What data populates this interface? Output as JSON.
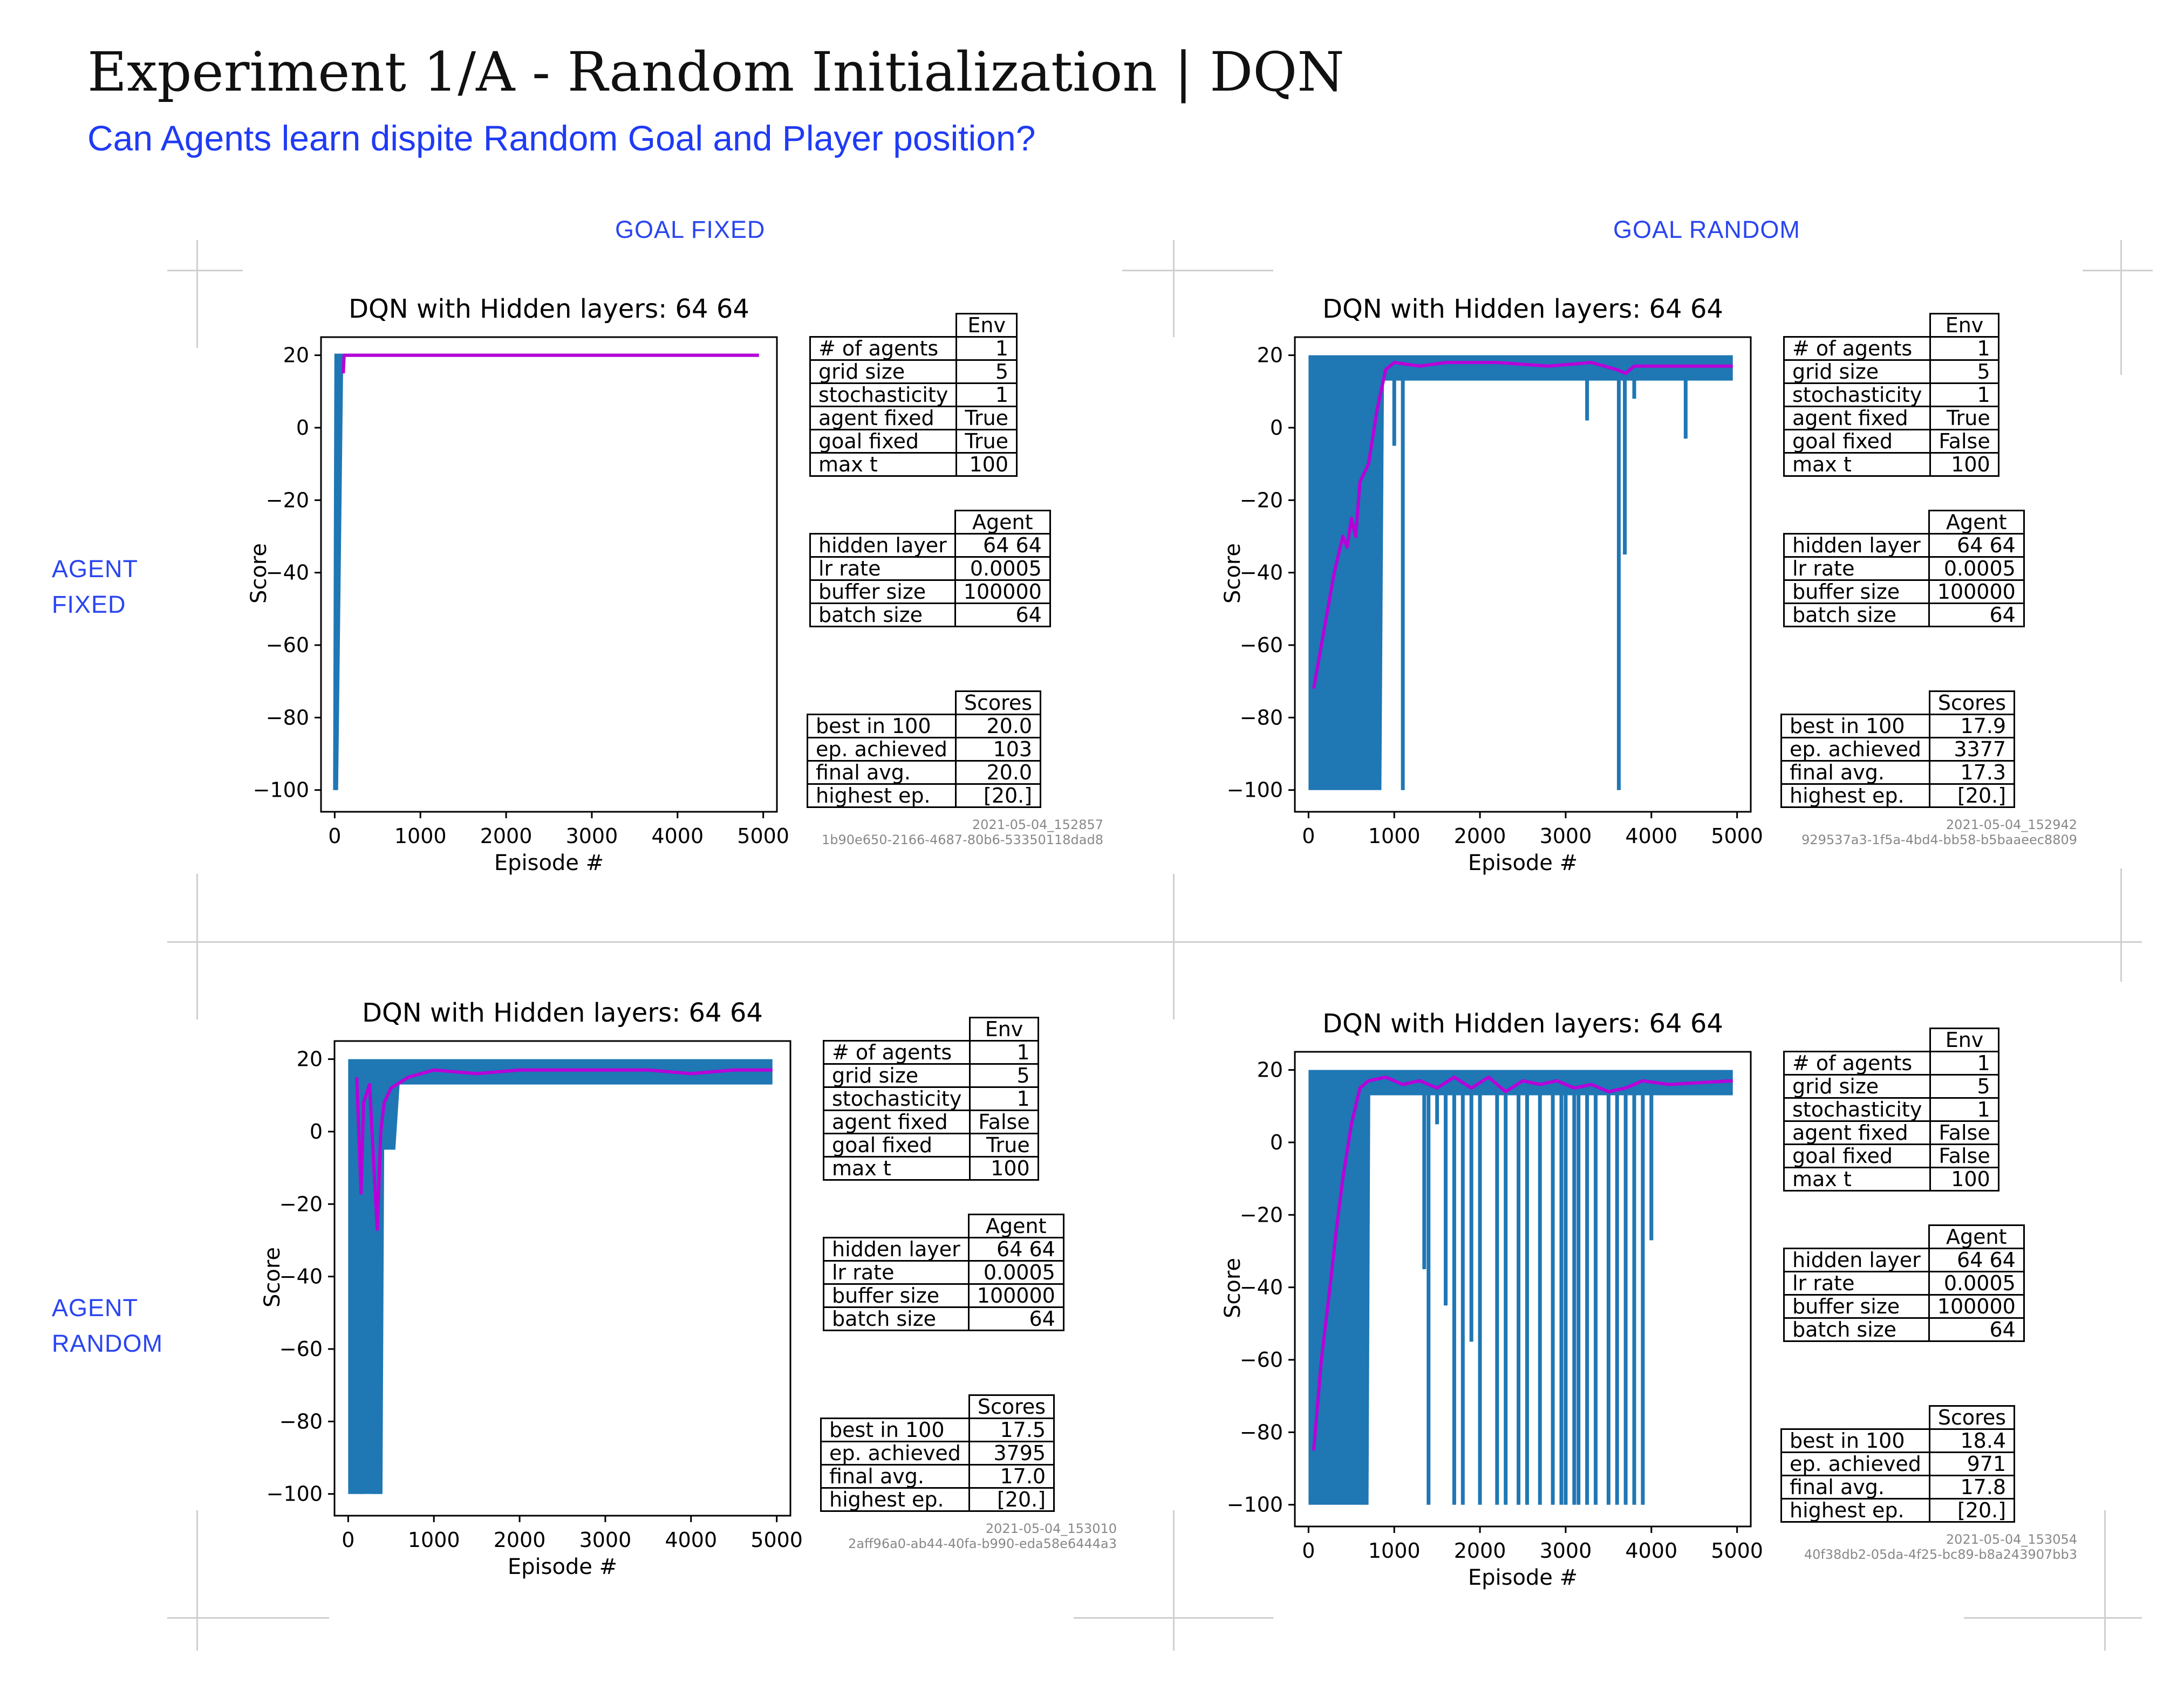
{
  "page": {
    "title": "Experiment 1/A - Random Initialization | DQN",
    "subtitle": "Can Agents learn dispite Random Goal and Player position?",
    "col_headers": [
      "GOAL FIXED",
      "GOAL RANDOM"
    ],
    "row_headers": [
      "AGENT\nFIXED",
      "AGENT\nRANDOM"
    ]
  },
  "colors": {
    "raw": "#1f77b4",
    "avg": "#b700d9",
    "heading": "#1f3bf5"
  },
  "panels": [
    {
      "title": "DQN with Hidden layers: 64 64",
      "ylabel": "Score",
      "xlabel": "Episode #",
      "env": {
        "header": "Env",
        "rows": [
          [
            "# of agents",
            "1"
          ],
          [
            "grid size",
            "5"
          ],
          [
            "stochasticity",
            "1"
          ],
          [
            "agent fixed",
            "True"
          ],
          [
            "goal fixed",
            "True"
          ],
          [
            "max t",
            "100"
          ]
        ]
      },
      "agent": {
        "header": "Agent",
        "rows": [
          [
            "hidden layer",
            "64 64"
          ],
          [
            "lr rate",
            "0.0005"
          ],
          [
            "buffer size",
            "100000"
          ],
          [
            "batch size",
            "64"
          ]
        ]
      },
      "scores": {
        "header": "Scores",
        "rows": [
          [
            "best in 100",
            "20.0"
          ],
          [
            "ep. achieved",
            "103"
          ],
          [
            "final avg.",
            "20.0"
          ],
          [
            "highest ep.",
            "[20.]"
          ]
        ]
      },
      "stamp": [
        "2021-05-04_152857",
        "1b90e650-2166-4687-80b6-53350118dad8"
      ]
    },
    {
      "title": "DQN with Hidden layers: 64 64",
      "ylabel": "Score",
      "xlabel": "Episode #",
      "env": {
        "header": "Env",
        "rows": [
          [
            "# of agents",
            "1"
          ],
          [
            "grid size",
            "5"
          ],
          [
            "stochasticity",
            "1"
          ],
          [
            "agent fixed",
            "True"
          ],
          [
            "goal fixed",
            "False"
          ],
          [
            "max t",
            "100"
          ]
        ]
      },
      "agent": {
        "header": "Agent",
        "rows": [
          [
            "hidden layer",
            "64 64"
          ],
          [
            "lr rate",
            "0.0005"
          ],
          [
            "buffer size",
            "100000"
          ],
          [
            "batch size",
            "64"
          ]
        ]
      },
      "scores": {
        "header": "Scores",
        "rows": [
          [
            "best in 100",
            "17.9"
          ],
          [
            "ep. achieved",
            "3377"
          ],
          [
            "final avg.",
            "17.3"
          ],
          [
            "highest ep.",
            "[20.]"
          ]
        ]
      },
      "stamp": [
        "2021-05-04_152942",
        "929537a3-1f5a-4bd4-bb58-b5baaeec8809"
      ]
    },
    {
      "title": "DQN with Hidden layers: 64 64",
      "ylabel": "Score",
      "xlabel": "Episode #",
      "env": {
        "header": "Env",
        "rows": [
          [
            "# of agents",
            "1"
          ],
          [
            "grid size",
            "5"
          ],
          [
            "stochasticity",
            "1"
          ],
          [
            "agent fixed",
            "False"
          ],
          [
            "goal fixed",
            "True"
          ],
          [
            "max t",
            "100"
          ]
        ]
      },
      "agent": {
        "header": "Agent",
        "rows": [
          [
            "hidden layer",
            "64 64"
          ],
          [
            "lr rate",
            "0.0005"
          ],
          [
            "buffer size",
            "100000"
          ],
          [
            "batch size",
            "64"
          ]
        ]
      },
      "scores": {
        "header": "Scores",
        "rows": [
          [
            "best in 100",
            "17.5"
          ],
          [
            "ep. achieved",
            "3795"
          ],
          [
            "final avg.",
            "17.0"
          ],
          [
            "highest ep.",
            "[20.]"
          ]
        ]
      },
      "stamp": [
        "2021-05-04_153010",
        "2aff96a0-ab44-40fa-b990-eda58e6444a3"
      ]
    },
    {
      "title": "DQN with Hidden layers: 64 64",
      "ylabel": "Score",
      "xlabel": "Episode #",
      "env": {
        "header": "Env",
        "rows": [
          [
            "# of agents",
            "1"
          ],
          [
            "grid size",
            "5"
          ],
          [
            "stochasticity",
            "1"
          ],
          [
            "agent fixed",
            "False"
          ],
          [
            "goal fixed",
            "False"
          ],
          [
            "max t",
            "100"
          ]
        ]
      },
      "agent": {
        "header": "Agent",
        "rows": [
          [
            "hidden layer",
            "64 64"
          ],
          [
            "lr rate",
            "0.0005"
          ],
          [
            "buffer size",
            "100000"
          ],
          [
            "batch size",
            "64"
          ]
        ]
      },
      "scores": {
        "header": "Scores",
        "rows": [
          [
            "best in 100",
            "18.4"
          ],
          [
            "ep. achieved",
            "971"
          ],
          [
            "final avg.",
            "17.8"
          ],
          [
            "highest ep.",
            "[20.]"
          ]
        ]
      },
      "stamp": [
        "2021-05-04_153054",
        "40f38db2-05da-4f25-bc89-b8a243907bb3"
      ]
    }
  ],
  "chart_data": [
    {
      "type": "line",
      "xlim": [
        0,
        5000
      ],
      "ylim": [
        -100,
        20
      ],
      "xticks": [
        0,
        1000,
        2000,
        3000,
        4000,
        5000
      ],
      "yticks": [
        20,
        0,
        -20,
        -40,
        -60,
        -80,
        -100
      ],
      "series": [
        {
          "band": [
            [
              0,
              -100,
              20
            ],
            [
              40,
              -100,
              20
            ],
            [
              100,
              20,
              20
            ],
            [
              4950,
              20,
              20
            ]
          ],
          "values": [
            [
              0,
              -100
            ],
            [
              15,
              20
            ],
            [
              4950,
              20
            ]
          ]
        },
        {
          "values": [
            [
              100,
              15
            ],
            [
              110,
              20
            ],
            [
              4950,
              20
            ]
          ]
        }
      ]
    },
    {
      "type": "line",
      "xlim": [
        0,
        5000
      ],
      "ylim": [
        -100,
        20
      ],
      "xticks": [
        0,
        1000,
        2000,
        3000,
        4000,
        5000
      ],
      "yticks": [
        20,
        0,
        -20,
        -40,
        -60,
        -80,
        -100
      ],
      "series": [
        {
          "band": [
            [
              0,
              -100,
              20
            ],
            [
              850,
              -100,
              20
            ],
            [
              880,
              13,
              20
            ],
            [
              4950,
              13,
              20
            ]
          ],
          "spikes": [
            [
              1000,
              -5
            ],
            [
              1100,
              -100
            ],
            [
              3250,
              2
            ],
            [
              3620,
              -100
            ],
            [
              3690,
              -35
            ],
            [
              3800,
              8
            ],
            [
              4400,
              -3
            ]
          ]
        },
        {
          "values": [
            [
              60,
              -72
            ],
            [
              150,
              -60
            ],
            [
              300,
              -40
            ],
            [
              400,
              -30
            ],
            [
              450,
              -33
            ],
            [
              500,
              -25
            ],
            [
              550,
              -30
            ],
            [
              600,
              -15
            ],
            [
              700,
              -10
            ],
            [
              800,
              5
            ],
            [
              900,
              16
            ],
            [
              1000,
              18
            ],
            [
              1300,
              17
            ],
            [
              1600,
              18
            ],
            [
              2200,
              18
            ],
            [
              2800,
              17
            ],
            [
              3300,
              18
            ],
            [
              3600,
              16
            ],
            [
              3700,
              15
            ],
            [
              3800,
              17
            ],
            [
              4300,
              17
            ],
            [
              4950,
              17
            ]
          ]
        }
      ]
    },
    {
      "type": "line",
      "xlim": [
        0,
        5000
      ],
      "ylim": [
        -100,
        20
      ],
      "xticks": [
        0,
        1000,
        2000,
        3000,
        4000,
        5000
      ],
      "yticks": [
        20,
        0,
        -20,
        -40,
        -60,
        -80,
        -100
      ],
      "series": [
        {
          "band": [
            [
              0,
              -100,
              20
            ],
            [
              400,
              -100,
              20
            ],
            [
              420,
              -5,
              20
            ],
            [
              550,
              -5,
              20
            ],
            [
              600,
              13,
              20
            ],
            [
              4950,
              13,
              20
            ]
          ],
          "spikes": [
            [
              150,
              -100
            ],
            [
              300,
              -100
            ],
            [
              360,
              -100
            ],
            [
              480,
              -5
            ],
            [
              520,
              -5
            ]
          ]
        },
        {
          "values": [
            [
              100,
              15
            ],
            [
              150,
              -17
            ],
            [
              180,
              8
            ],
            [
              250,
              13
            ],
            [
              300,
              -10
            ],
            [
              340,
              -27
            ],
            [
              380,
              0
            ],
            [
              420,
              8
            ],
            [
              500,
              12
            ],
            [
              700,
              15
            ],
            [
              1000,
              17
            ],
            [
              1500,
              16
            ],
            [
              2000,
              17
            ],
            [
              2500,
              17
            ],
            [
              3000,
              17
            ],
            [
              3500,
              17
            ],
            [
              4000,
              16
            ],
            [
              4500,
              17
            ],
            [
              4950,
              17
            ]
          ]
        }
      ]
    },
    {
      "type": "line",
      "xlim": [
        0,
        5000
      ],
      "ylim": [
        -100,
        20
      ],
      "xticks": [
        0,
        1000,
        2000,
        3000,
        4000,
        5000
      ],
      "yticks": [
        20,
        0,
        -20,
        -40,
        -60,
        -80,
        -100
      ],
      "series": [
        {
          "band": [
            [
              0,
              -100,
              20
            ],
            [
              700,
              -100,
              20
            ],
            [
              720,
              13,
              20
            ],
            [
              4950,
              13,
              20
            ]
          ],
          "spikes": [
            [
              1350,
              -35
            ],
            [
              1400,
              -100
            ],
            [
              1500,
              5
            ],
            [
              1600,
              -45
            ],
            [
              1700,
              -100
            ],
            [
              1800,
              -100
            ],
            [
              1900,
              -55
            ],
            [
              2000,
              -100
            ],
            [
              2200,
              -100
            ],
            [
              2300,
              -100
            ],
            [
              2450,
              -100
            ],
            [
              2550,
              -100
            ],
            [
              2700,
              -100
            ],
            [
              2850,
              -100
            ],
            [
              2950,
              -100
            ],
            [
              3000,
              -100
            ],
            [
              3100,
              -100
            ],
            [
              3150,
              -100
            ],
            [
              3250,
              -100
            ],
            [
              3350,
              -100
            ],
            [
              3500,
              -100
            ],
            [
              3600,
              -100
            ],
            [
              3700,
              -100
            ],
            [
              3800,
              -100
            ],
            [
              3900,
              -100
            ],
            [
              4000,
              -27
            ]
          ]
        },
        {
          "values": [
            [
              60,
              -85
            ],
            [
              150,
              -60
            ],
            [
              250,
              -40
            ],
            [
              320,
              -25
            ],
            [
              400,
              -10
            ],
            [
              500,
              5
            ],
            [
              600,
              15
            ],
            [
              700,
              17
            ],
            [
              900,
              18
            ],
            [
              1100,
              16
            ],
            [
              1300,
              17
            ],
            [
              1500,
              15
            ],
            [
              1700,
              18
            ],
            [
              1900,
              15
            ],
            [
              2100,
              18
            ],
            [
              2300,
              14
            ],
            [
              2500,
              17
            ],
            [
              2700,
              16
            ],
            [
              2900,
              17
            ],
            [
              3100,
              15
            ],
            [
              3300,
              16
            ],
            [
              3500,
              14
            ],
            [
              3700,
              15
            ],
            [
              3900,
              17
            ],
            [
              4200,
              16
            ],
            [
              4950,
              17
            ]
          ]
        }
      ]
    }
  ]
}
